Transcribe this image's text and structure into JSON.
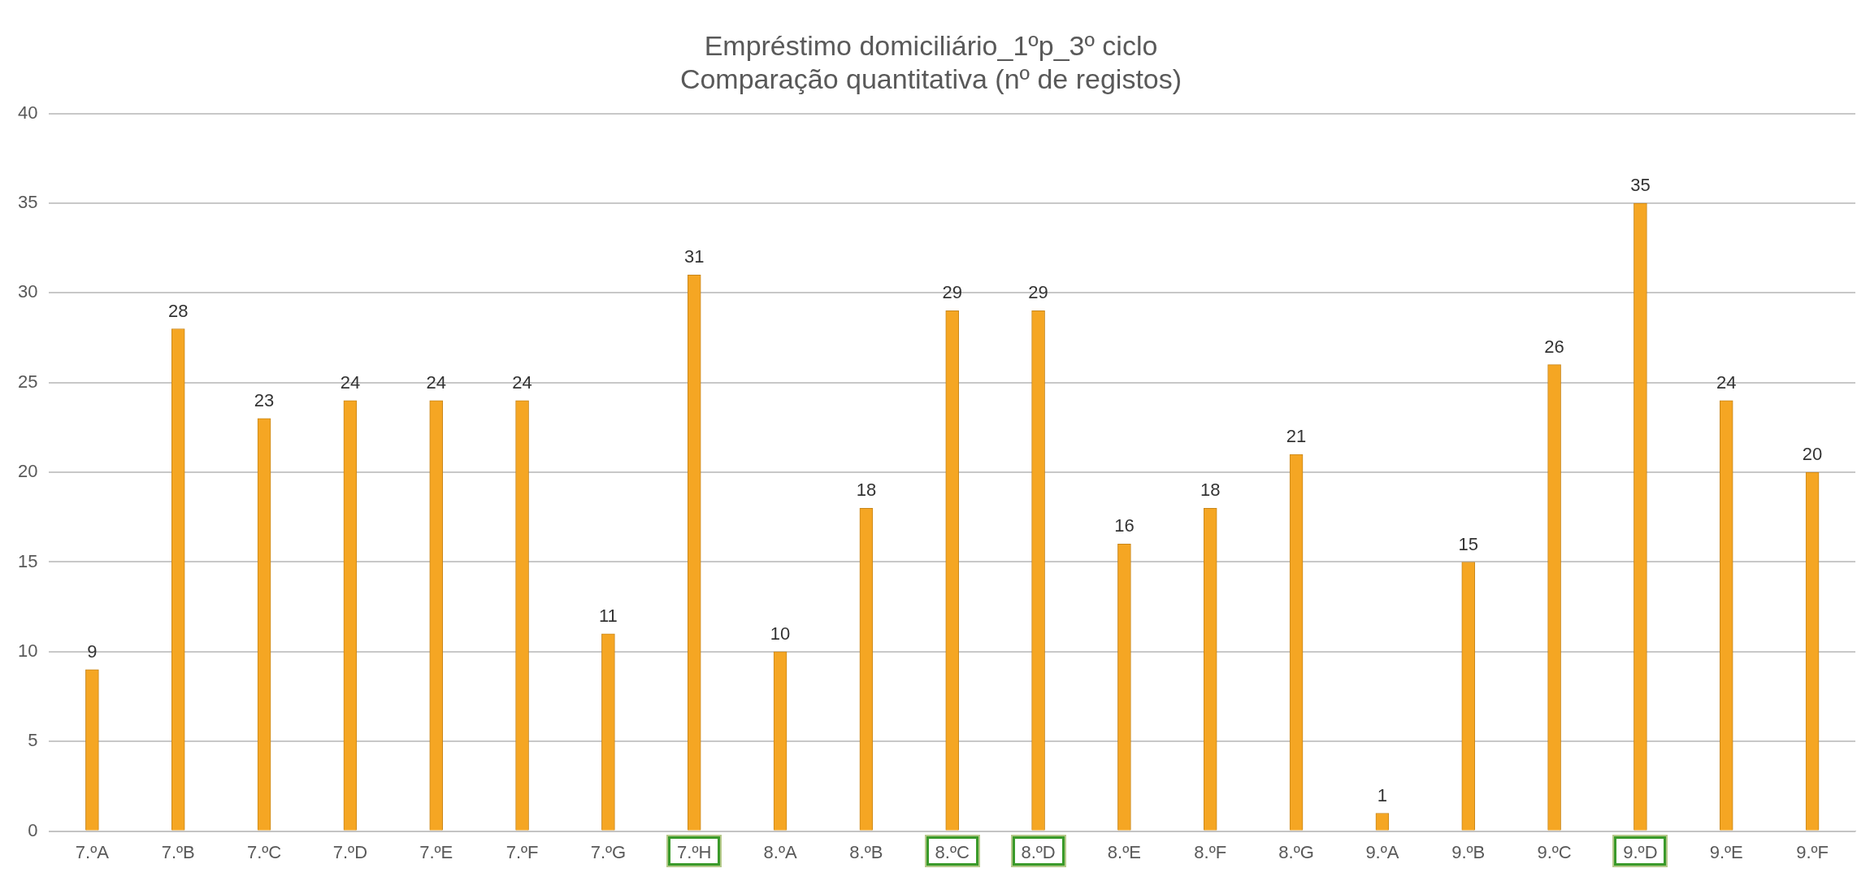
{
  "chart_data": {
    "type": "bar",
    "title": [
      "Empréstimo domiciliário_1ºp_3º ciclo",
      "Comparação quantitativa (nº de registos)"
    ],
    "categories": [
      "7.ºA",
      "7.ºB",
      "7.ºC",
      "7.ºD",
      "7.ºE",
      "7.ºF",
      "7.ºG",
      "7.ºH",
      "8.ºA",
      "8.ºB",
      "8.ºC",
      "8.ºD",
      "8.ºE",
      "8.ºF",
      "8.ºG",
      "9.ºA",
      "9.ºB",
      "9.ºC",
      "9.ºD",
      "9.ºE",
      "9.ºF"
    ],
    "values": [
      9,
      28,
      23,
      24,
      24,
      24,
      11,
      31,
      10,
      18,
      29,
      29,
      16,
      18,
      21,
      1,
      15,
      26,
      35,
      24,
      20
    ],
    "color": "#f5a623",
    "ylim": [
      0,
      40
    ],
    "yticks": [
      0,
      5,
      10,
      15,
      20,
      25,
      30,
      35,
      40
    ],
    "grid": "y",
    "data_labels": true
  }
}
